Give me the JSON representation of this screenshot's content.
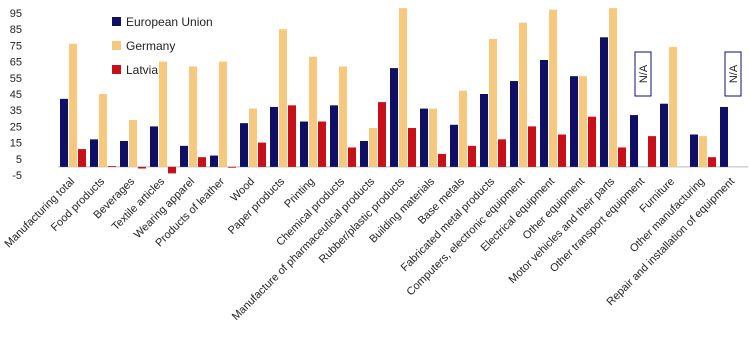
{
  "chart_data": {
    "type": "bar",
    "categories": [
      "Manufacturing total",
      "Food products",
      "Beverages",
      "Textile articles",
      "Wearing apparel",
      "Products of leather",
      "Wood",
      "Paper products",
      "Printing",
      "Chemical products",
      "Manufacture of pharmaceutical products",
      "Rubber/plastic products",
      "Building materials",
      "Base metals",
      "Fabricated metal products",
      "Computers, electronic equipment",
      "Electrical equipment",
      "Other equipment",
      "Motor vehicles and their parts",
      "Other transport equipment",
      "Furniture",
      "Other manufacturing",
      "Repair and installation of equipment"
    ],
    "series": [
      {
        "name": "European Union",
        "color": "#0f0f66",
        "values": [
          42,
          17,
          16,
          25,
          13,
          7,
          27,
          37,
          28,
          38,
          16,
          61,
          36,
          26,
          45,
          53,
          66,
          56,
          80,
          32,
          39,
          20,
          37
        ]
      },
      {
        "name": "Germany",
        "color": "#f7c97f",
        "values": [
          76,
          45,
          29,
          65,
          62,
          65,
          36,
          85,
          68,
          62,
          24,
          98,
          36,
          47,
          79,
          89,
          97,
          56,
          98,
          null,
          74,
          19,
          null
        ]
      },
      {
        "name": "Latvia",
        "color": "#c8101a",
        "values": [
          11,
          0.5,
          -1,
          -4,
          6,
          -0.5,
          15,
          38,
          28,
          12,
          40,
          24,
          8,
          13,
          17,
          25,
          20,
          31,
          12,
          19,
          null,
          6,
          null
        ]
      }
    ],
    "annotations": [
      {
        "text": "N/A",
        "category": "Other transport equipment",
        "series": "Germany"
      },
      {
        "text": "N/A",
        "category": "Repair and installation of equipment",
        "series": "Germany"
      }
    ],
    "ylim": [
      -5,
      95
    ],
    "yticks": [
      -5,
      5,
      15,
      25,
      35,
      45,
      55,
      65,
      75,
      85,
      95
    ],
    "legend": "top-left"
  }
}
